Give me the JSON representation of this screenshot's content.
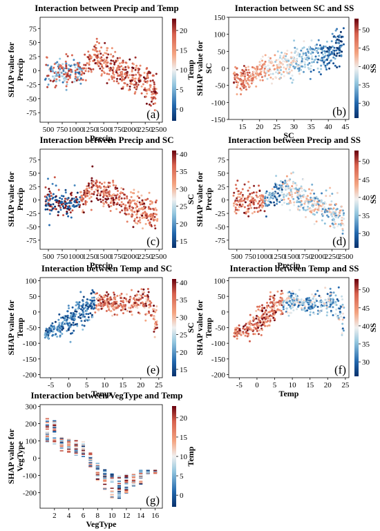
{
  "colors": {
    "low": "#08306b",
    "mid": "#f0f0f0",
    "high": "#67000d",
    "frame": "#000000"
  },
  "chart_data": [
    {
      "type": "scatter",
      "panel": "(a)",
      "title": "Interaction between Precip and Temp",
      "xlabel": "Precip",
      "ylabel": [
        "SHAP value for",
        "Precip"
      ],
      "colorbar_label": "Temp",
      "xlim": [
        350,
        2560
      ],
      "ylim": [
        -92,
        95
      ],
      "xticks": [
        500,
        750,
        1000,
        1250,
        1500,
        1750,
        2000,
        2250,
        2500
      ],
      "yticks": [
        -75,
        -50,
        -25,
        0,
        25,
        50,
        75
      ],
      "cticks": [
        0,
        5,
        10,
        15,
        20
      ],
      "clim": [
        -3,
        23
      ],
      "profile": [
        [
          400,
          0,
          12
        ],
        [
          600,
          -5,
          14
        ],
        [
          900,
          -4,
          12
        ],
        [
          1100,
          -2,
          10
        ],
        [
          1250,
          20,
          12
        ],
        [
          1400,
          22,
          14
        ],
        [
          1550,
          12,
          14
        ],
        [
          1750,
          2,
          14
        ],
        [
          2000,
          -12,
          14
        ],
        [
          2300,
          -25,
          16
        ],
        [
          2500,
          -40,
          16
        ]
      ],
      "color_rule": "precip_temp"
    },
    {
      "type": "scatter",
      "panel": "(b)",
      "title": "Interaction between SC and SS",
      "xlabel": "SC",
      "ylabel": [
        "SHAP value for",
        "SC"
      ],
      "colorbar_label": "SS",
      "xlim": [
        11,
        46
      ],
      "ylim": [
        -150,
        150
      ],
      "xticks": [
        15,
        20,
        25,
        30,
        35,
        40,
        45
      ],
      "yticks": [
        -150,
        -100,
        -50,
        0,
        50,
        100,
        150
      ],
      "cticks": [
        30,
        35,
        40,
        45,
        50
      ],
      "clim": [
        26,
        53
      ],
      "profile": [
        [
          13,
          -35,
          18
        ],
        [
          18,
          -25,
          20
        ],
        [
          20,
          -5,
          18
        ],
        [
          25,
          5,
          22
        ],
        [
          30,
          20,
          22
        ],
        [
          35,
          30,
          25
        ],
        [
          40,
          45,
          28
        ],
        [
          44,
          70,
          20
        ]
      ],
      "color_rule": "sc_ss"
    },
    {
      "type": "scatter",
      "panel": "(c)",
      "title": "Interaction between Precip and SC",
      "xlabel": "Precip",
      "ylabel": [
        "SHAP value for",
        "Precip"
      ],
      "colorbar_label": "SC",
      "xlim": [
        350,
        2560
      ],
      "ylim": [
        -92,
        95
      ],
      "xticks": [
        500,
        750,
        1000,
        1250,
        1500,
        1750,
        2000,
        2250,
        2500
      ],
      "yticks": [
        -75,
        -50,
        -25,
        0,
        25,
        50,
        75
      ],
      "cticks": [
        15,
        20,
        25,
        30,
        35,
        40
      ],
      "clim": [
        13,
        41
      ],
      "profile": [
        [
          400,
          0,
          12
        ],
        [
          600,
          -5,
          14
        ],
        [
          900,
          -4,
          12
        ],
        [
          1100,
          -2,
          10
        ],
        [
          1250,
          20,
          12
        ],
        [
          1400,
          22,
          14
        ],
        [
          1550,
          12,
          14
        ],
        [
          1750,
          2,
          14
        ],
        [
          2000,
          -12,
          14
        ],
        [
          2300,
          -25,
          16
        ],
        [
          2500,
          -40,
          16
        ]
      ],
      "color_rule": "precip_sc"
    },
    {
      "type": "scatter",
      "panel": "(d)",
      "title": "Interaction between Precip and SS",
      "xlabel": "Precip",
      "ylabel": [
        "SHAP value for",
        "Precip"
      ],
      "colorbar_label": "SS",
      "xlim": [
        350,
        2560
      ],
      "ylim": [
        -92,
        95
      ],
      "xticks": [
        500,
        750,
        1000,
        1250,
        1500,
        1750,
        2000,
        2250,
        2500
      ],
      "yticks": [
        -75,
        -50,
        -25,
        0,
        25,
        50,
        75
      ],
      "cticks": [
        30,
        35,
        40,
        45,
        50
      ],
      "clim": [
        26,
        53
      ],
      "profile": [
        [
          400,
          0,
          12
        ],
        [
          600,
          -5,
          14
        ],
        [
          900,
          -4,
          12
        ],
        [
          1100,
          -2,
          10
        ],
        [
          1250,
          20,
          12
        ],
        [
          1400,
          22,
          14
        ],
        [
          1550,
          12,
          14
        ],
        [
          1750,
          2,
          14
        ],
        [
          2000,
          -12,
          14
        ],
        [
          2300,
          -25,
          16
        ],
        [
          2500,
          -40,
          16
        ]
      ],
      "color_rule": "precip_ss"
    },
    {
      "type": "scatter",
      "panel": "(e)",
      "title": "Interaction between Temp and SC",
      "xlabel": "Temp",
      "ylabel": [
        "SHAP value for",
        "Temp"
      ],
      "colorbar_label": "SC",
      "xlim": [
        -8,
        26
      ],
      "ylim": [
        -210,
        110
      ],
      "xticks": [
        -5,
        0,
        5,
        10,
        15,
        20,
        25
      ],
      "yticks": [
        -200,
        -150,
        -100,
        -50,
        0,
        50,
        100
      ],
      "cticks": [
        15,
        20,
        25,
        30,
        35,
        40
      ],
      "clim": [
        13,
        41
      ],
      "profile": [
        [
          -7,
          -70,
          6
        ],
        [
          -3,
          -55,
          14
        ],
        [
          0,
          -30,
          25
        ],
        [
          3,
          0,
          25
        ],
        [
          6,
          20,
          22
        ],
        [
          9,
          30,
          15
        ],
        [
          14,
          25,
          14
        ],
        [
          18,
          30,
          18
        ],
        [
          22,
          40,
          22
        ],
        [
          24,
          -20,
          30
        ]
      ],
      "color_rule": "temp_sc"
    },
    {
      "type": "scatter",
      "panel": "(f)",
      "title": "Interaction between Temp and SS",
      "xlabel": "Temp",
      "ylabel": [
        "SHAP value for",
        "Temp"
      ],
      "colorbar_label": "SS",
      "xlim": [
        -8,
        26
      ],
      "ylim": [
        -210,
        110
      ],
      "xticks": [
        -5,
        0,
        5,
        10,
        15,
        20,
        25
      ],
      "yticks": [
        -200,
        -150,
        -100,
        -50,
        0,
        50,
        100
      ],
      "cticks": [
        30,
        35,
        40,
        45,
        50
      ],
      "clim": [
        26,
        53
      ],
      "profile": [
        [
          -7,
          -70,
          6
        ],
        [
          -3,
          -55,
          14
        ],
        [
          0,
          -30,
          25
        ],
        [
          3,
          0,
          25
        ],
        [
          6,
          20,
          22
        ],
        [
          9,
          30,
          15
        ],
        [
          14,
          25,
          14
        ],
        [
          18,
          30,
          18
        ],
        [
          22,
          40,
          22
        ],
        [
          24,
          -20,
          30
        ]
      ],
      "color_rule": "temp_ss"
    },
    {
      "type": "scatter",
      "panel": "(g)",
      "title": "Interaction between VegType and Temp",
      "xlabel": "VegType",
      "ylabel": [
        "SHAP value for",
        "VegType"
      ],
      "colorbar_label": "Temp",
      "xlim": [
        0,
        17
      ],
      "ylim": [
        -290,
        310
      ],
      "xticks": [
        2,
        4,
        6,
        8,
        10,
        12,
        14,
        16
      ],
      "yticks": [
        -200,
        -100,
        0,
        100,
        200,
        300
      ],
      "cticks": [
        0,
        5,
        10,
        15,
        20
      ],
      "clim": [
        -3,
        23
      ],
      "categorical_x": [
        1,
        2,
        3,
        4,
        5,
        6,
        7,
        8,
        9,
        10,
        11,
        12,
        13,
        14,
        15,
        16
      ],
      "profile": [
        [
          1,
          160,
          70
        ],
        [
          2,
          150,
          70
        ],
        [
          3,
          80,
          40
        ],
        [
          4,
          75,
          40
        ],
        [
          5,
          60,
          45
        ],
        [
          6,
          50,
          45
        ],
        [
          7,
          -10,
          40
        ],
        [
          8,
          -80,
          50
        ],
        [
          9,
          -120,
          60
        ],
        [
          10,
          -160,
          70
        ],
        [
          11,
          -170,
          70
        ],
        [
          12,
          -150,
          60
        ],
        [
          13,
          -130,
          40
        ],
        [
          14,
          -110,
          40
        ],
        [
          15,
          -80,
          10
        ],
        [
          16,
          -80,
          10
        ]
      ],
      "color_rule": "veg_temp"
    }
  ]
}
